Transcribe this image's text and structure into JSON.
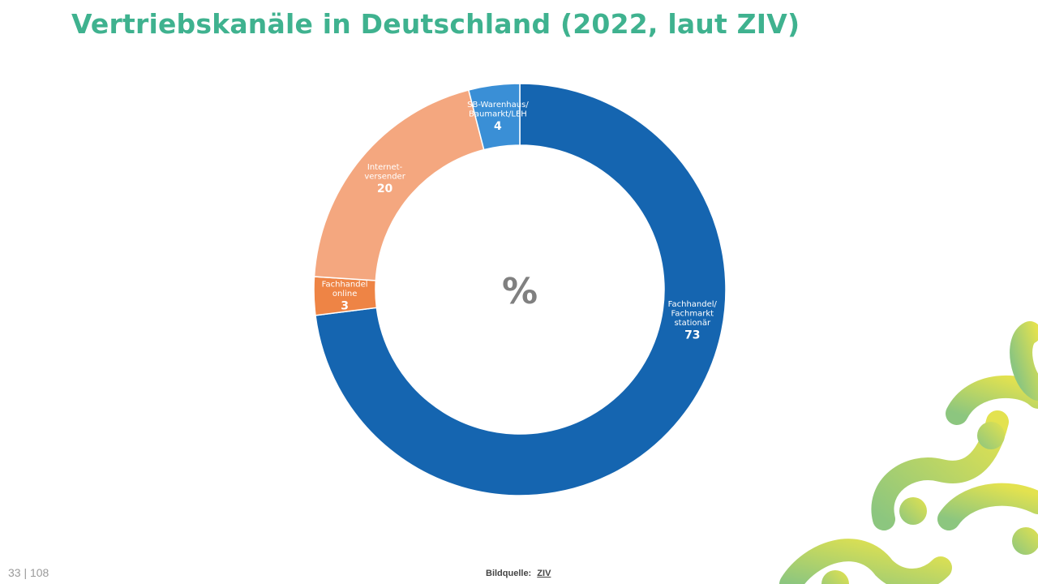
{
  "page": {
    "title": "Vertriebskanäle in Deutschland (2022, laut ZIV)",
    "page_number": "33 | 108",
    "source_label": "Bildquelle:",
    "source_link": "ZIV"
  },
  "chart_data": {
    "type": "pie",
    "variant": "donut",
    "center_label": "%",
    "slices": [
      {
        "label_lines": [
          "Fachhandel/",
          "Fachmarkt",
          "stationär"
        ],
        "value": 73,
        "color": "#1565b0"
      },
      {
        "label_lines": [
          "Fachhandel",
          "online"
        ],
        "value": 3,
        "color": "#ee8445"
      },
      {
        "label_lines": [
          "Internet-",
          "versender"
        ],
        "value": 20,
        "color": "#f4a77f"
      },
      {
        "label_lines": [
          "SB-Warenhaus/",
          "Baumarkt/LEH"
        ],
        "value": 4,
        "color": "#3a8fd6"
      }
    ],
    "legend": "none",
    "start": "top, clockwise"
  },
  "colors": {
    "title": "#3fb28f",
    "center_label": "#808080",
    "deco_green": "#8cc67f",
    "deco_lime": "#e3e24f"
  }
}
